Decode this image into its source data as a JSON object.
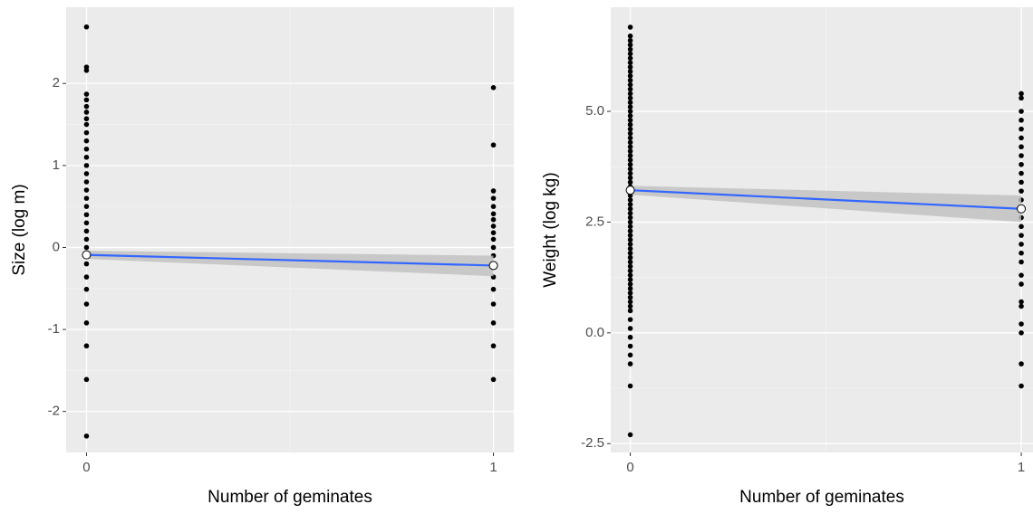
{
  "chart_data": [
    {
      "type": "scatter",
      "y_label": "Size (log m)",
      "x_label": "Number of geminates",
      "xlim": [
        -0.05,
        1.05
      ],
      "ylim": [
        -2.5,
        2.93
      ],
      "xticks": [
        0,
        1
      ],
      "yticks": [
        -2,
        -1,
        0,
        1,
        2
      ],
      "grid": true,
      "minor_grid": true,
      "point_color": "#000000",
      "groups": [
        {
          "x": 0,
          "values": [
            2.69,
            2.2,
            2.16,
            1.87,
            1.8,
            1.72,
            1.65,
            1.57,
            1.5,
            1.4,
            1.3,
            1.2,
            1.1,
            1.0,
            0.9,
            0.8,
            0.7,
            0.6,
            0.5,
            0.4,
            0.3,
            0.2,
            0.1,
            0.0,
            -0.1,
            -0.2,
            -0.36,
            -0.51,
            -0.69,
            -0.92,
            -1.2,
            -1.61,
            -2.3
          ]
        },
        {
          "x": 1,
          "values": [
            1.95,
            1.25,
            0.69,
            0.6,
            0.5,
            0.41,
            0.34,
            0.26,
            0.18,
            0.1,
            0.0,
            -0.1,
            -0.22,
            -0.36,
            -0.51,
            -0.69,
            -0.92,
            -1.2,
            -1.61
          ]
        }
      ],
      "fit": {
        "x": [
          0,
          1
        ],
        "values": [
          -0.09,
          -0.22
        ],
        "lower": [
          -0.14,
          -0.35
        ],
        "upper": [
          -0.04,
          -0.1
        ],
        "color": "#3366ff",
        "band_color": "#bfbfbf"
      }
    },
    {
      "type": "scatter",
      "y_label": "Weight (log kg)",
      "x_label": "Number of geminates",
      "xlim": [
        -0.05,
        1.03
      ],
      "ylim": [
        -2.7,
        7.35
      ],
      "xticks": [
        0,
        1
      ],
      "yticks": [
        {
          "value": -2.5,
          "label": "-2.5"
        },
        {
          "value": 0,
          "label": "0.0"
        },
        {
          "value": 2.5,
          "label": "2.5"
        },
        {
          "value": 5,
          "label": "5.0"
        }
      ],
      "grid": true,
      "minor_grid": true,
      "point_color": "#000000",
      "groups": [
        {
          "x": 0,
          "values": [
            -2.3,
            -1.2,
            -0.7,
            -0.5,
            -0.3,
            -0.1,
            0.1,
            0.3,
            0.5,
            0.6,
            0.7,
            0.8,
            0.9,
            1.0,
            1.1,
            1.2,
            1.3,
            1.4,
            1.5,
            1.6,
            1.7,
            1.8,
            1.9,
            2.0,
            2.1,
            2.2,
            2.3,
            2.4,
            2.5,
            2.6,
            2.7,
            2.8,
            2.9,
            3.0,
            3.1,
            3.2,
            3.3,
            3.4,
            3.5,
            3.6,
            3.7,
            3.8,
            3.9,
            4.0,
            4.1,
            4.2,
            4.3,
            4.4,
            4.5,
            4.6,
            4.7,
            4.8,
            4.9,
            5.0,
            5.1,
            5.2,
            5.3,
            5.4,
            5.5,
            5.6,
            5.7,
            5.8,
            5.9,
            6.0,
            6.1,
            6.2,
            6.3,
            6.4,
            6.5,
            6.6,
            6.7,
            6.9
          ]
        },
        {
          "x": 1,
          "values": [
            5.4,
            5.3,
            5.0,
            4.8,
            4.6,
            4.4,
            4.2,
            4.0,
            3.8,
            3.6,
            3.4,
            3.2,
            3.0,
            2.8,
            2.6,
            2.4,
            2.2,
            2.0,
            1.8,
            1.6,
            1.3,
            1.1,
            0.7,
            0.6,
            0.2,
            0.0,
            -0.7,
            -1.2
          ]
        }
      ],
      "fit": {
        "x": [
          0,
          1
        ],
        "values": [
          3.22,
          2.8
        ],
        "lower": [
          3.12,
          2.5
        ],
        "upper": [
          3.32,
          3.1
        ],
        "color": "#3366ff",
        "band_color": "#bfbfbf"
      }
    }
  ]
}
